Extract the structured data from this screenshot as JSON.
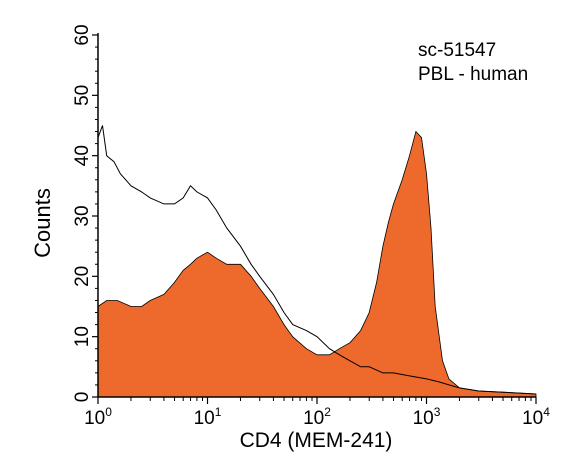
{
  "chart_data": {
    "type": "area",
    "annotation": {
      "line1": "sc-51547",
      "line2": "PBL - human"
    },
    "xlabel": "CD4 (MEM-241)",
    "ylabel": "Counts",
    "x_scale": "log",
    "xlim": [
      1,
      10000
    ],
    "ylim": [
      0,
      60
    ],
    "x_ticks": [
      {
        "value": 1,
        "base": "10",
        "exp": "0"
      },
      {
        "value": 10,
        "base": "10",
        "exp": "1"
      },
      {
        "value": 100,
        "base": "10",
        "exp": "2"
      },
      {
        "value": 1000,
        "base": "10",
        "exp": "3"
      },
      {
        "value": 10000,
        "base": "10",
        "exp": "4"
      }
    ],
    "y_ticks": [
      0,
      10,
      20,
      30,
      40,
      50,
      60
    ],
    "grid": false,
    "series": [
      {
        "style": "filled",
        "color": "#ee6a2c",
        "x": [
          1,
          1.2,
          1.5,
          2,
          2.5,
          3,
          4,
          5,
          6,
          7,
          8,
          10,
          12,
          15,
          20,
          25,
          30,
          40,
          50,
          60,
          80,
          100,
          130,
          160,
          200,
          250,
          300,
          350,
          400,
          450,
          500,
          600,
          700,
          800,
          900,
          1000,
          1100,
          1200,
          1400,
          1600,
          2000,
          3000,
          5000,
          10000
        ],
        "values": [
          15,
          16,
          16,
          15,
          15,
          16,
          17,
          19,
          21,
          22,
          23,
          24,
          23,
          22,
          22,
          20,
          18,
          15,
          12,
          10,
          8,
          7,
          7,
          8,
          9,
          11,
          14,
          19,
          25,
          29,
          32,
          36,
          40,
          44,
          43,
          37,
          28,
          15,
          6,
          3,
          1.5,
          1,
          0.8,
          0.5
        ]
      },
      {
        "style": "outline",
        "color": "#000000",
        "x": [
          1,
          1.1,
          1.2,
          1.4,
          1.6,
          2,
          2.5,
          3,
          4,
          5,
          6,
          7,
          8,
          10,
          12,
          15,
          20,
          25,
          30,
          40,
          50,
          60,
          80,
          100,
          130,
          160,
          200,
          250,
          300,
          400,
          500,
          700,
          1000,
          1300,
          1600,
          2000,
          3000,
          5000,
          10000
        ],
        "values": [
          43,
          45,
          40,
          39,
          37,
          35,
          34,
          33,
          32,
          32,
          33,
          35,
          34,
          33,
          31,
          28,
          25,
          22,
          20,
          17,
          14,
          12,
          11,
          10,
          8,
          7,
          6,
          5,
          5,
          4,
          4,
          3.5,
          3,
          2.5,
          2,
          1.5,
          1,
          0.8,
          0.5
        ]
      }
    ]
  }
}
